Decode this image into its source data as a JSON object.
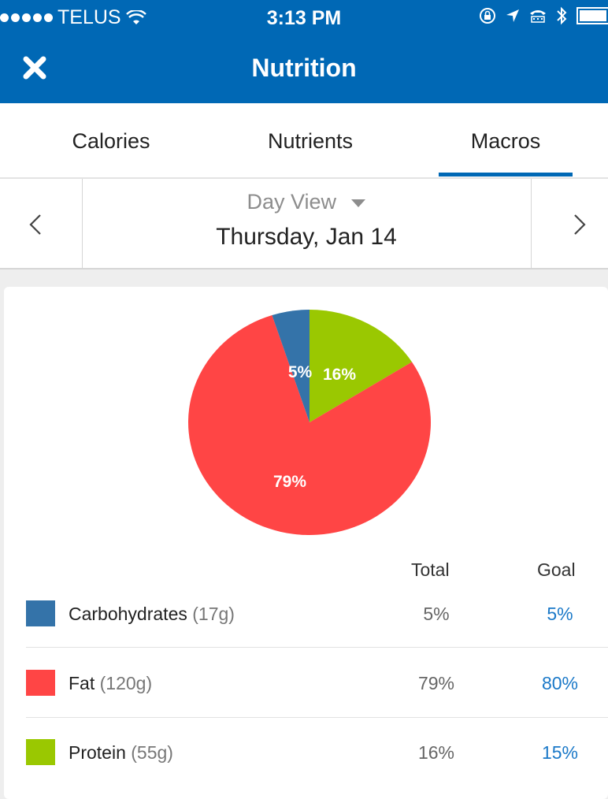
{
  "status_bar": {
    "carrier": "TELUS",
    "time": "3:13 PM",
    "icons": [
      "signal-dots-icon",
      "wifi-icon",
      "lock-rotation-icon",
      "location-icon",
      "tty-icon",
      "bluetooth-icon",
      "battery-icon"
    ]
  },
  "nav": {
    "title": "Nutrition",
    "close_icon": "close-icon"
  },
  "tabs": [
    {
      "label": "Calories",
      "active": false
    },
    {
      "label": "Nutrients",
      "active": false
    },
    {
      "label": "Macros",
      "active": true
    }
  ],
  "date_nav": {
    "view": "Day View",
    "date": "Thursday, Jan 14",
    "prev_icon": "chevron-left-icon",
    "next_icon": "chevron-right-icon"
  },
  "chart_data": {
    "type": "pie",
    "slices": [
      {
        "name": "Protein",
        "value": 16,
        "label": "16%",
        "color": "#9ac801"
      },
      {
        "name": "Fat",
        "value": 79,
        "label": "79%",
        "color": "#ff4545"
      },
      {
        "name": "Carbohydrates",
        "value": 5,
        "label": "5%",
        "color": "#3473a9"
      }
    ],
    "start_at": "12 o'clock",
    "direction": "clockwise"
  },
  "table": {
    "headers": {
      "total": "Total",
      "goal": "Goal"
    },
    "rows": [
      {
        "name": "Carbohydrates",
        "qty": "(17g)",
        "total": "5%",
        "goal": "5%",
        "color": "#3473a9"
      },
      {
        "name": "Fat",
        "qty": "(120g)",
        "total": "79%",
        "goal": "80%",
        "color": "#ff4545"
      },
      {
        "name": "Protein",
        "qty": "(55g)",
        "total": "16%",
        "goal": "15%",
        "color": "#9ac801"
      }
    ]
  }
}
